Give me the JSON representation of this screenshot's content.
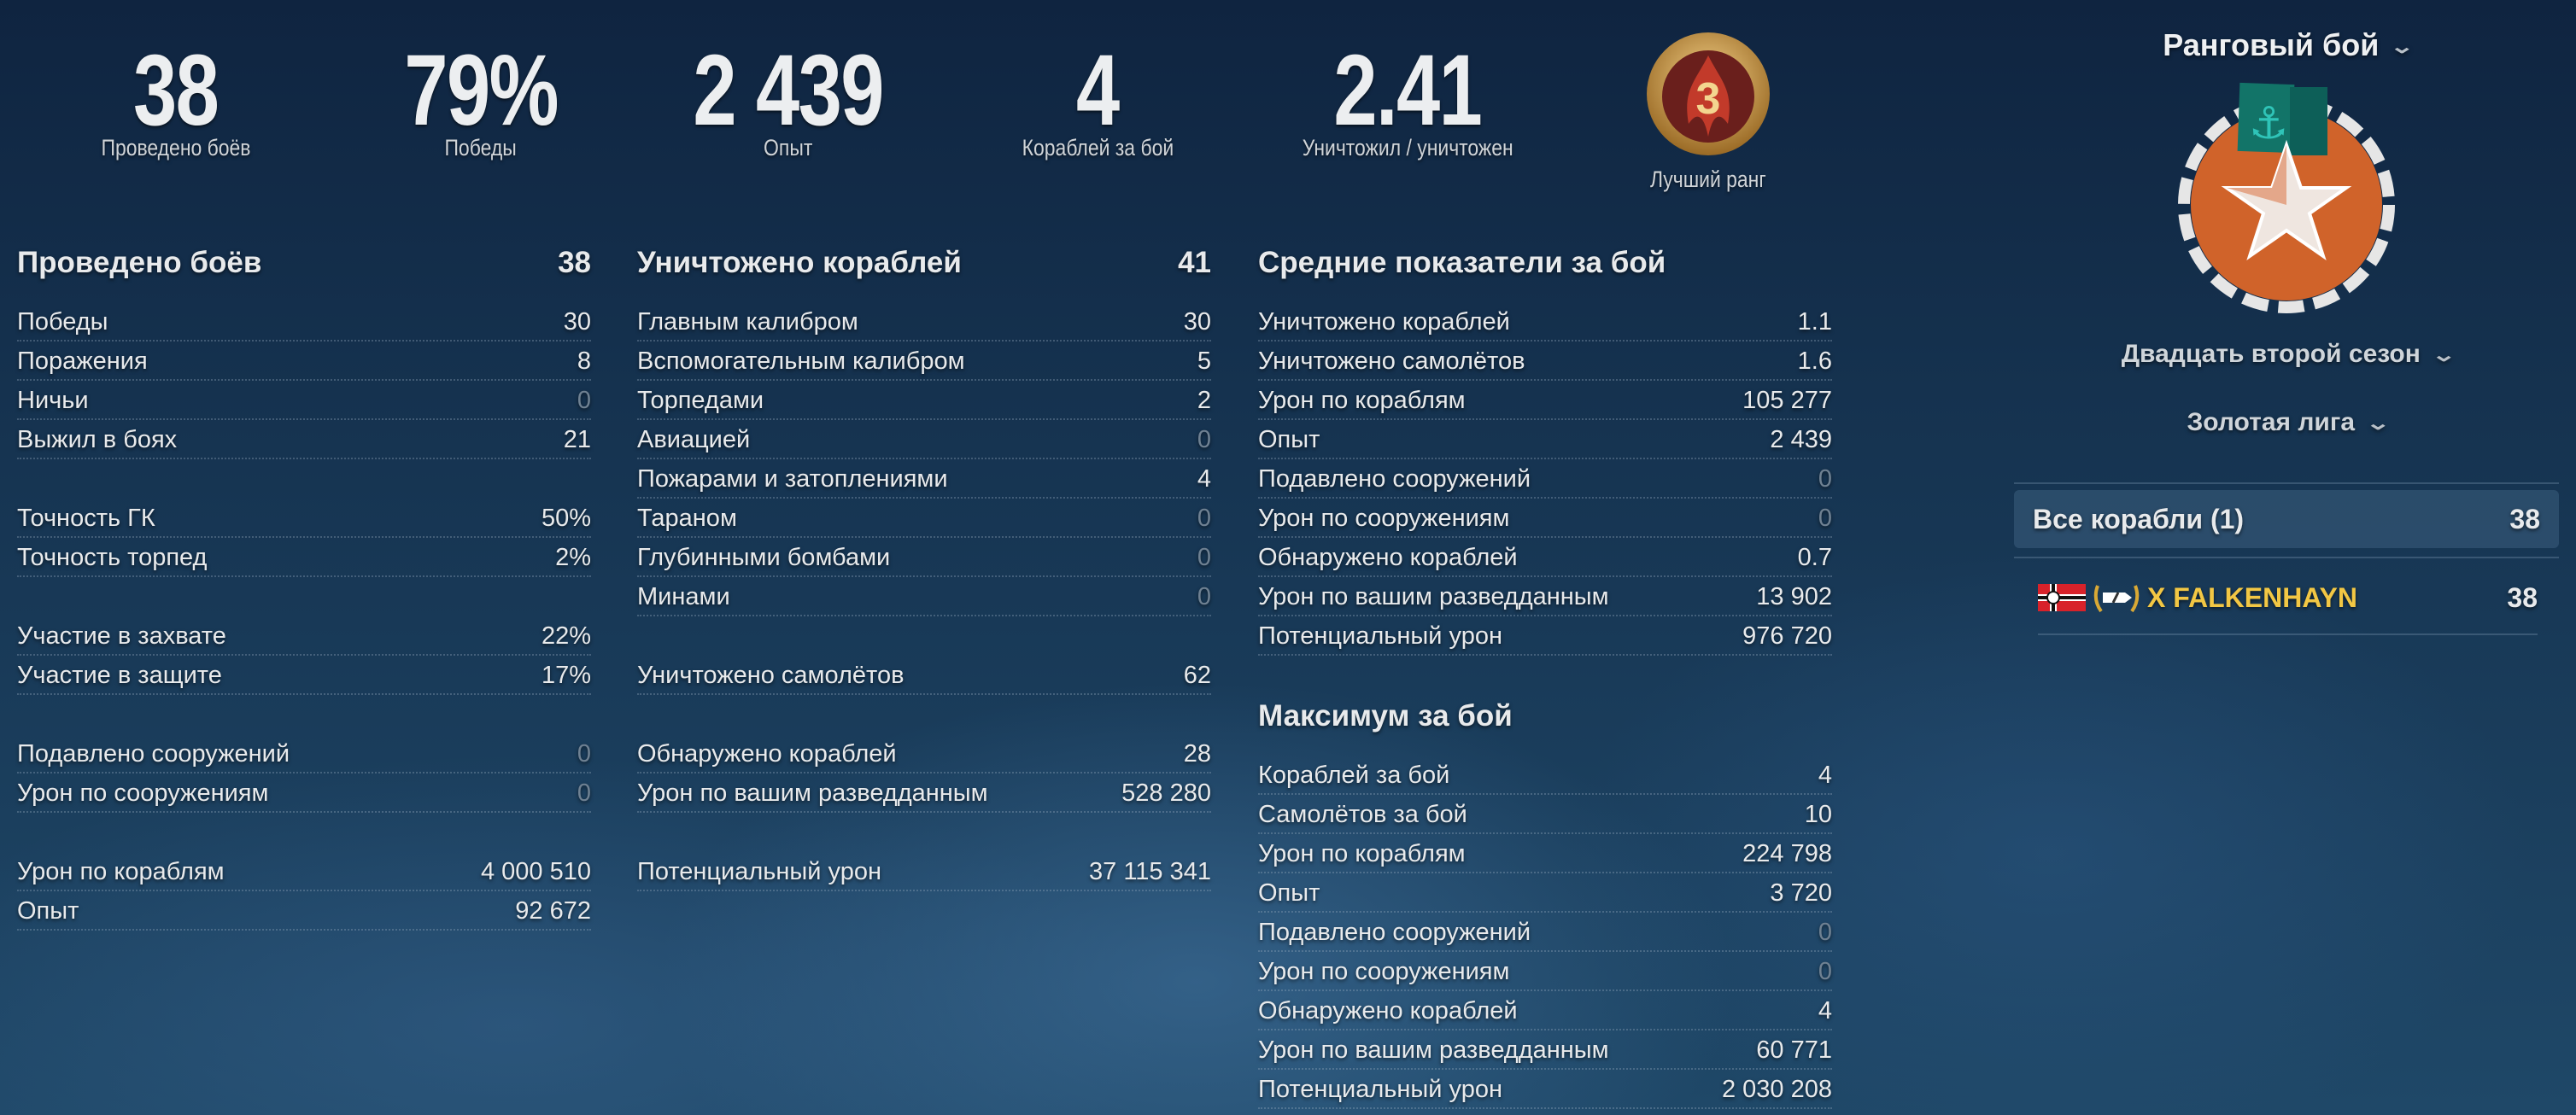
{
  "top_stats": [
    {
      "value": "38",
      "label": "Проведено боёв"
    },
    {
      "value": "79%",
      "label": "Победы"
    },
    {
      "value": "2 439",
      "label": "Опыт"
    },
    {
      "value": "4",
      "label": "Кораблей за бой"
    },
    {
      "value": "2.41",
      "label": "Уничтожил / уничтожен"
    }
  ],
  "best_rank": {
    "label": "Лучший ранг",
    "rank": "3"
  },
  "col1": {
    "title": "Проведено боёв",
    "value": "38",
    "rows": [
      {
        "label": "Победы",
        "value": "30"
      },
      {
        "label": "Поражения",
        "value": "8"
      },
      {
        "label": "Ничьи",
        "value": "0",
        "muted": true
      },
      {
        "label": "Выжил в боях",
        "value": "21"
      },
      {
        "spacer": true
      },
      {
        "label": "Точность ГК",
        "value": "50%"
      },
      {
        "label": "Точность торпед",
        "value": "2%"
      },
      {
        "spacer": true
      },
      {
        "label": "Участие в захвате",
        "value": "22%"
      },
      {
        "label": "Участие в защите",
        "value": "17%"
      },
      {
        "spacer": true
      },
      {
        "label": "Подавлено сооружений",
        "value": "0",
        "muted": true
      },
      {
        "label": "Урон по сооружениям",
        "value": "0",
        "muted": true
      },
      {
        "spacer": true
      },
      {
        "label": "Урон по кораблям",
        "value": "4 000 510"
      },
      {
        "label": "Опыт",
        "value": "92 672"
      }
    ]
  },
  "col2": {
    "title": "Уничтожено кораблей",
    "value": "41",
    "rows": [
      {
        "label": "Главным калибром",
        "value": "30"
      },
      {
        "label": "Вспомогательным калибром",
        "value": "5"
      },
      {
        "label": "Торпедами",
        "value": "2"
      },
      {
        "label": "Авиацией",
        "value": "0",
        "muted": true
      },
      {
        "label": "Пожарами и затоплениями",
        "value": "4"
      },
      {
        "label": "Тараном",
        "value": "0",
        "muted": true
      },
      {
        "label": "Глубинными бомбами",
        "value": "0",
        "muted": true
      },
      {
        "label": "Минами",
        "value": "0",
        "muted": true
      },
      {
        "spacer": true
      },
      {
        "label": "Уничтожено самолётов",
        "value": "62"
      },
      {
        "spacer": true
      },
      {
        "label": "Обнаружено кораблей",
        "value": "28"
      },
      {
        "label": "Урон по вашим разведданным",
        "value": "528 280"
      },
      {
        "spacer": true
      },
      {
        "label": "Потенциальный урон",
        "value": "37 115 341"
      }
    ]
  },
  "col3": {
    "title": "Средние показатели за бой",
    "value": "",
    "rows": [
      {
        "label": "Уничтожено кораблей",
        "value": "1.1"
      },
      {
        "label": "Уничтожено самолётов",
        "value": "1.6"
      },
      {
        "label": "Урон по кораблям",
        "value": "105 277"
      },
      {
        "label": "Опыт",
        "value": "2 439"
      },
      {
        "label": "Подавлено сооружений",
        "value": "0",
        "muted": true
      },
      {
        "label": "Урон по сооружениям",
        "value": "0",
        "muted": true
      },
      {
        "label": "Обнаружено кораблей",
        "value": "0.7"
      },
      {
        "label": "Урон по вашим разведданным",
        "value": "13 902"
      },
      {
        "label": "Потенциальный урон",
        "value": "976 720"
      }
    ]
  },
  "col3b": {
    "title": "Максимум за бой",
    "value": "",
    "rows": [
      {
        "label": "Кораблей за бой",
        "value": "4"
      },
      {
        "label": "Самолётов за бой",
        "value": "10"
      },
      {
        "label": "Урон по кораблям",
        "value": "224 798"
      },
      {
        "label": "Опыт",
        "value": "3 720"
      },
      {
        "label": "Подавлено сооружений",
        "value": "0",
        "muted": true
      },
      {
        "label": "Урон по сооружениям",
        "value": "0",
        "muted": true
      },
      {
        "label": "Обнаружено кораблей",
        "value": "4"
      },
      {
        "label": "Урон по вашим разведданным",
        "value": "60 771"
      },
      {
        "label": "Потенциальный урон",
        "value": "2 030 208"
      }
    ]
  },
  "right": {
    "mode": "Ранговый бой",
    "season": "Двадцать второй сезон",
    "league": "Золотая лига",
    "all_ships": {
      "label": "Все корабли (1)",
      "value": "38"
    },
    "ships": [
      {
        "name": "X FALKENHAYN",
        "value": "38",
        "color": "#f2c744"
      }
    ],
    "emblem_color": "#d0632a",
    "flag_color": "#0f6b63"
  }
}
